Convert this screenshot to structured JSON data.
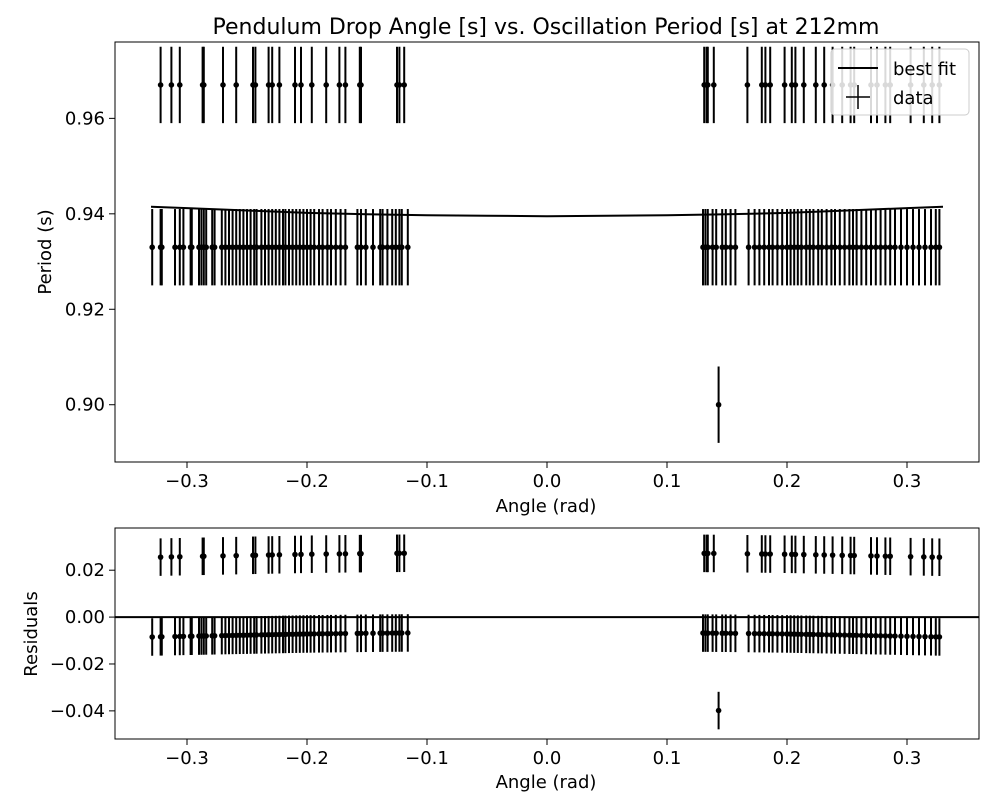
{
  "chart_data": [
    {
      "type": "scatter",
      "title": "Pendulum Drop Angle [s] vs. Oscillation Period [s] at 212mm",
      "xlabel": "Angle (rad)",
      "ylabel": "Period (s)",
      "xlim": [
        -0.36,
        0.36
      ],
      "ylim": [
        0.888,
        0.976
      ],
      "xticks": [
        -0.3,
        -0.2,
        -0.1,
        0.0,
        0.1,
        0.2,
        0.3
      ],
      "xtick_labels": [
        "−0.3",
        "−0.2",
        "−0.1",
        "0.0",
        "0.1",
        "0.2",
        "0.3"
      ],
      "yticks": [
        0.9,
        0.92,
        0.94,
        0.96
      ],
      "ytick_labels": [
        "0.90",
        "0.92",
        "0.94",
        "0.96"
      ],
      "legend": {
        "position": "top-right",
        "entries": [
          "best fit",
          "data"
        ]
      },
      "grid": false,
      "series": [
        {
          "name": "data",
          "style": "errorbar",
          "yerr": 0.008,
          "points": [
            [
              -0.329,
              0.933
            ],
            [
              -0.322,
              0.933
            ],
            [
              -0.321,
              0.933
            ],
            [
              -0.31,
              0.933
            ],
            [
              -0.306,
              0.933
            ],
            [
              -0.303,
              0.933
            ],
            [
              -0.297,
              0.933
            ],
            [
              -0.296,
              0.933
            ],
            [
              -0.29,
              0.933
            ],
            [
              -0.288,
              0.933
            ],
            [
              -0.286,
              0.933
            ],
            [
              -0.284,
              0.933
            ],
            [
              -0.279,
              0.933
            ],
            [
              -0.277,
              0.933
            ],
            [
              -0.271,
              0.933
            ],
            [
              -0.268,
              0.933
            ],
            [
              -0.265,
              0.933
            ],
            [
              -0.262,
              0.933
            ],
            [
              -0.259,
              0.933
            ],
            [
              -0.256,
              0.933
            ],
            [
              -0.253,
              0.933
            ],
            [
              -0.25,
              0.933
            ],
            [
              -0.247,
              0.933
            ],
            [
              -0.244,
              0.933
            ],
            [
              -0.242,
              0.933
            ],
            [
              -0.238,
              0.933
            ],
            [
              -0.235,
              0.933
            ],
            [
              -0.232,
              0.933
            ],
            [
              -0.229,
              0.933
            ],
            [
              -0.226,
              0.933
            ],
            [
              -0.223,
              0.933
            ],
            [
              -0.22,
              0.933
            ],
            [
              -0.218,
              0.933
            ],
            [
              -0.215,
              0.933
            ],
            [
              -0.212,
              0.933
            ],
            [
              -0.209,
              0.933
            ],
            [
              -0.206,
              0.933
            ],
            [
              -0.203,
              0.933
            ],
            [
              -0.2,
              0.933
            ],
            [
              -0.197,
              0.933
            ],
            [
              -0.194,
              0.933
            ],
            [
              -0.19,
              0.933
            ],
            [
              -0.187,
              0.933
            ],
            [
              -0.183,
              0.933
            ],
            [
              -0.18,
              0.933
            ],
            [
              -0.176,
              0.933
            ],
            [
              -0.172,
              0.933
            ],
            [
              -0.168,
              0.933
            ],
            [
              -0.158,
              0.933
            ],
            [
              -0.155,
              0.933
            ],
            [
              -0.151,
              0.933
            ],
            [
              -0.145,
              0.933
            ],
            [
              -0.139,
              0.933
            ],
            [
              -0.137,
              0.933
            ],
            [
              -0.133,
              0.933
            ],
            [
              -0.129,
              0.933
            ],
            [
              -0.126,
              0.933
            ],
            [
              -0.123,
              0.933
            ],
            [
              -0.121,
              0.933
            ],
            [
              -0.116,
              0.933
            ],
            [
              0.13,
              0.933
            ],
            [
              0.132,
              0.933
            ],
            [
              0.134,
              0.933
            ],
            [
              0.138,
              0.933
            ],
            [
              0.141,
              0.933
            ],
            [
              0.146,
              0.933
            ],
            [
              0.149,
              0.933
            ],
            [
              0.153,
              0.933
            ],
            [
              0.157,
              0.933
            ],
            [
              0.168,
              0.933
            ],
            [
              0.173,
              0.933
            ],
            [
              0.177,
              0.933
            ],
            [
              0.181,
              0.933
            ],
            [
              0.185,
              0.933
            ],
            [
              0.188,
              0.933
            ],
            [
              0.192,
              0.933
            ],
            [
              0.196,
              0.933
            ],
            [
              0.2,
              0.933
            ],
            [
              0.203,
              0.933
            ],
            [
              0.206,
              0.933
            ],
            [
              0.209,
              0.933
            ],
            [
              0.212,
              0.933
            ],
            [
              0.216,
              0.933
            ],
            [
              0.219,
              0.933
            ],
            [
              0.222,
              0.933
            ],
            [
              0.226,
              0.933
            ],
            [
              0.229,
              0.933
            ],
            [
              0.233,
              0.933
            ],
            [
              0.237,
              0.933
            ],
            [
              0.24,
              0.933
            ],
            [
              0.244,
              0.933
            ],
            [
              0.248,
              0.933
            ],
            [
              0.252,
              0.933
            ],
            [
              0.255,
              0.933
            ],
            [
              0.258,
              0.933
            ],
            [
              0.262,
              0.933
            ],
            [
              0.266,
              0.933
            ],
            [
              0.27,
              0.933
            ],
            [
              0.274,
              0.933
            ],
            [
              0.278,
              0.933
            ],
            [
              0.282,
              0.933
            ],
            [
              0.286,
              0.933
            ],
            [
              0.29,
              0.933
            ],
            [
              0.295,
              0.933
            ],
            [
              0.3,
              0.933
            ],
            [
              0.305,
              0.933
            ],
            [
              0.31,
              0.933
            ],
            [
              0.315,
              0.933
            ],
            [
              0.32,
              0.933
            ],
            [
              0.324,
              0.933
            ],
            [
              0.327,
              0.933
            ],
            [
              -0.322,
              0.967
            ],
            [
              -0.313,
              0.967
            ],
            [
              -0.306,
              0.967
            ],
            [
              -0.287,
              0.967
            ],
            [
              -0.286,
              0.967
            ],
            [
              -0.27,
              0.967
            ],
            [
              -0.259,
              0.967
            ],
            [
              -0.245,
              0.967
            ],
            [
              -0.243,
              0.967
            ],
            [
              -0.232,
              0.967
            ],
            [
              -0.229,
              0.967
            ],
            [
              -0.223,
              0.967
            ],
            [
              -0.21,
              0.967
            ],
            [
              -0.205,
              0.967
            ],
            [
              -0.196,
              0.967
            ],
            [
              -0.184,
              0.967
            ],
            [
              -0.173,
              0.967
            ],
            [
              -0.168,
              0.967
            ],
            [
              -0.156,
              0.967
            ],
            [
              -0.155,
              0.967
            ],
            [
              -0.125,
              0.967
            ],
            [
              -0.123,
              0.967
            ],
            [
              -0.119,
              0.967
            ],
            [
              0.131,
              0.967
            ],
            [
              0.133,
              0.967
            ],
            [
              0.134,
              0.967
            ],
            [
              0.139,
              0.967
            ],
            [
              0.167,
              0.967
            ],
            [
              0.179,
              0.967
            ],
            [
              0.182,
              0.967
            ],
            [
              0.186,
              0.967
            ],
            [
              0.198,
              0.967
            ],
            [
              0.204,
              0.967
            ],
            [
              0.207,
              0.967
            ],
            [
              0.214,
              0.967
            ],
            [
              0.224,
              0.967
            ],
            [
              0.231,
              0.967
            ],
            [
              0.238,
              0.967
            ],
            [
              0.246,
              0.967
            ],
            [
              0.253,
              0.967
            ],
            [
              0.256,
              0.967
            ],
            [
              0.27,
              0.967
            ],
            [
              0.275,
              0.967
            ],
            [
              0.282,
              0.967
            ],
            [
              0.286,
              0.967
            ],
            [
              0.303,
              0.967
            ],
            [
              0.314,
              0.967
            ],
            [
              0.321,
              0.967
            ],
            [
              0.327,
              0.967
            ],
            [
              0.143,
              0.9
            ]
          ]
        },
        {
          "name": "best fit",
          "style": "line",
          "x": [
            -0.33,
            -0.3,
            -0.25,
            -0.2,
            -0.15,
            -0.1,
            -0.05,
            0.0,
            0.05,
            0.1,
            0.15,
            0.2,
            0.25,
            0.3,
            0.33
          ],
          "y": [
            0.9415,
            0.9412,
            0.9407,
            0.9402,
            0.9399,
            0.9397,
            0.9396,
            0.9395,
            0.9396,
            0.9397,
            0.9399,
            0.9402,
            0.9407,
            0.9412,
            0.9415
          ]
        }
      ]
    },
    {
      "type": "scatter",
      "xlabel": "Angle (rad)",
      "ylabel": "Residuals",
      "xlim": [
        -0.36,
        0.36
      ],
      "ylim": [
        -0.052,
        0.038
      ],
      "xticks": [
        -0.3,
        -0.2,
        -0.1,
        0.0,
        0.1,
        0.2,
        0.3
      ],
      "xtick_labels": [
        "−0.3",
        "−0.2",
        "−0.1",
        "0.0",
        "0.1",
        "0.2",
        "0.3"
      ],
      "yticks": [
        -0.04,
        -0.02,
        0.0,
        0.02
      ],
      "ytick_labels": [
        "−0.04",
        "−0.02",
        "0.00",
        "0.02"
      ],
      "grid": false,
      "hline": 0.0,
      "series": [
        {
          "style": "errorbar",
          "yerr": 0.008,
          "points": "residuals of the data series against the best-fit curve"
        }
      ]
    }
  ]
}
